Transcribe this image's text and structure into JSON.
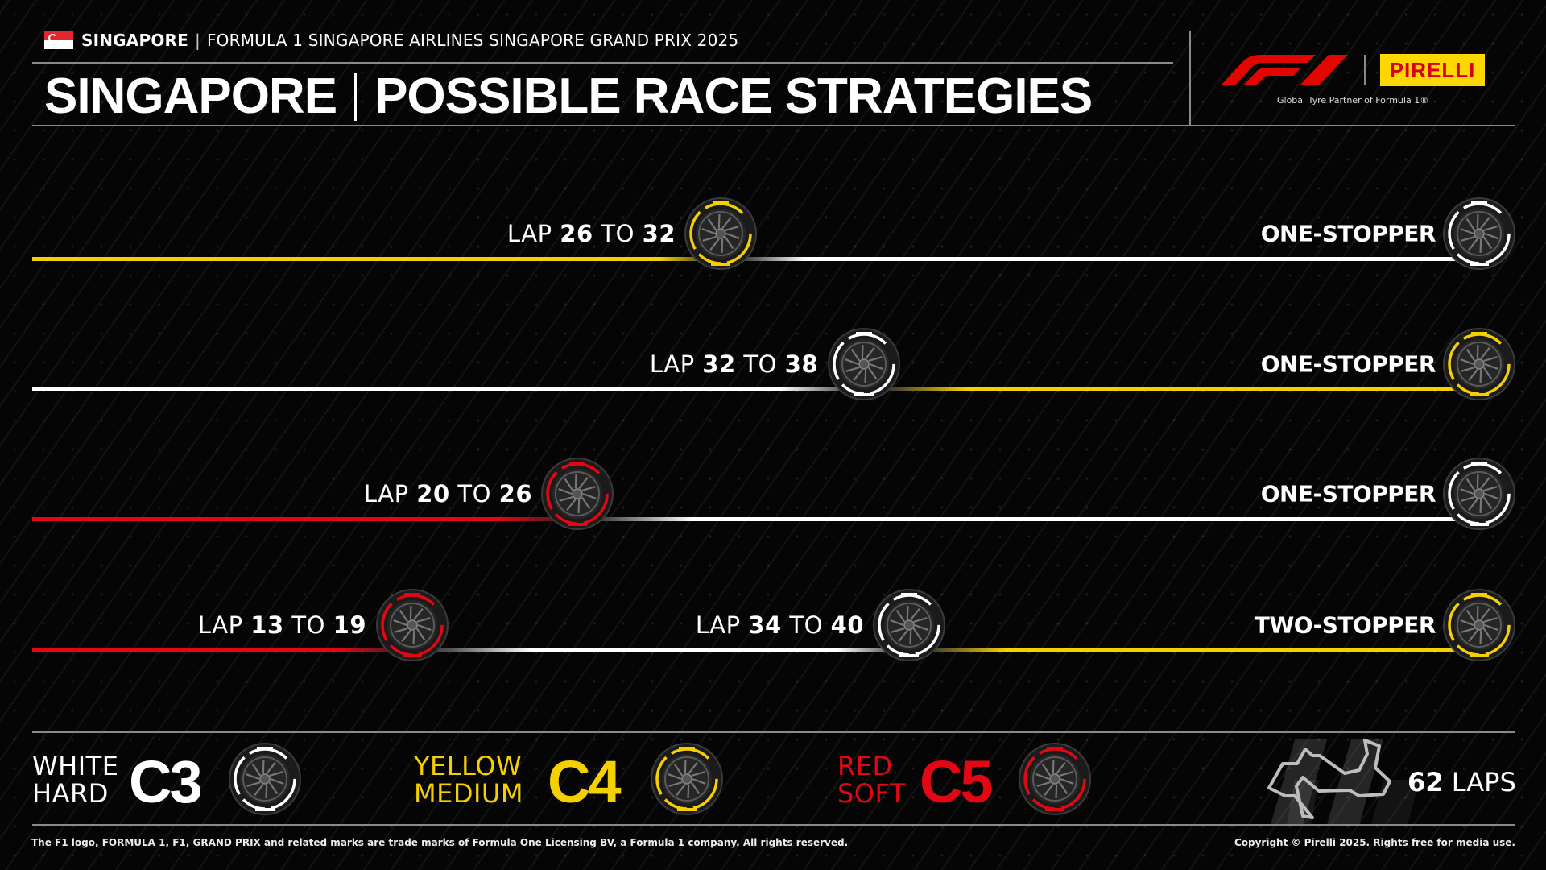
{
  "header": {
    "country": "SINGAPORE",
    "event": "FORMULA 1 SINGAPORE AIRLINES SINGAPORE GRAND PRIX 2025",
    "title_left": "SINGAPORE",
    "title_right": "POSSIBLE RACE STRATEGIES",
    "logos": {
      "f1": "F1",
      "pirelli": "PIRELLI",
      "partner_text": "Global Tyre Partner of Formula 1®"
    }
  },
  "colors": {
    "hard": "#ffffff",
    "medium": "#f5d000",
    "soft": "#e30613",
    "background": "#050505"
  },
  "strategies": [
    {
      "type": "ONE-STOPPER",
      "stints": [
        "medium",
        "hard"
      ],
      "pit_windows": [
        {
          "word_lap": "LAP",
          "from": "26",
          "word_to": "TO",
          "to": "32"
        }
      ]
    },
    {
      "type": "ONE-STOPPER",
      "stints": [
        "hard",
        "medium"
      ],
      "pit_windows": [
        {
          "word_lap": "LAP",
          "from": "32",
          "word_to": "TO",
          "to": "38"
        }
      ]
    },
    {
      "type": "ONE-STOPPER",
      "stints": [
        "soft",
        "hard"
      ],
      "pit_windows": [
        {
          "word_lap": "LAP",
          "from": "20",
          "word_to": "TO",
          "to": "26"
        }
      ]
    },
    {
      "type": "TWO-STOPPER",
      "stints": [
        "soft",
        "hard",
        "medium"
      ],
      "pit_windows": [
        {
          "word_lap": "LAP",
          "from": "13",
          "word_to": "TO",
          "to": "19"
        },
        {
          "word_lap": "LAP",
          "from": "34",
          "word_to": "TO",
          "to": "40"
        }
      ]
    }
  ],
  "legend": [
    {
      "color_name": "WHITE",
      "compound_name": "HARD",
      "code": "C3",
      "compound": "hard"
    },
    {
      "color_name": "YELLOW",
      "compound_name": "MEDIUM",
      "code": "C4",
      "compound": "medium"
    },
    {
      "color_name": "RED",
      "compound_name": "SOFT",
      "code": "C5",
      "compound": "soft"
    }
  ],
  "race": {
    "laps_value": "62",
    "laps_label": "LAPS"
  },
  "footer": {
    "trademark": "The F1 logo, FORMULA 1, F1, GRAND PRIX and related marks are trade marks of Formula One Licensing BV, a Formula 1 company. All rights reserved.",
    "copyright": "Copyright © Pirelli 2025. Rights free for media use."
  }
}
